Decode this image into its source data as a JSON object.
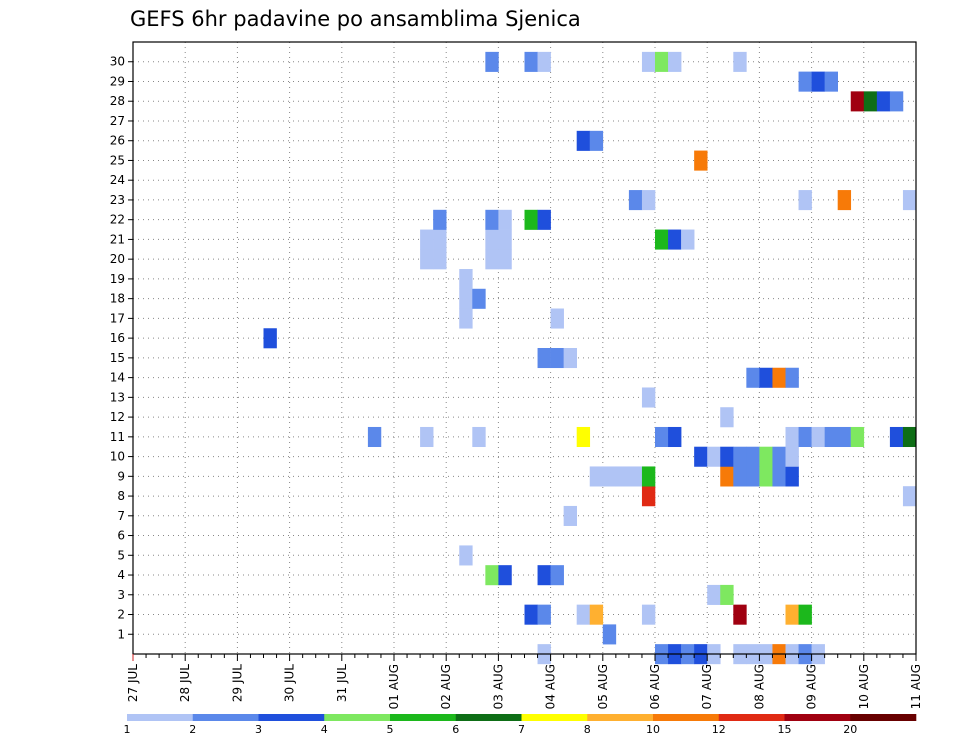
{
  "chart_data": {
    "type": "heatmap",
    "title": "GEFS 6hr padavine po ansamblima Sjenica",
    "xlabel": "",
    "ylabel": "",
    "y_ticks": [
      1,
      2,
      3,
      4,
      5,
      6,
      7,
      8,
      9,
      10,
      11,
      12,
      13,
      14,
      15,
      16,
      17,
      18,
      19,
      20,
      21,
      22,
      23,
      24,
      25,
      26,
      27,
      28,
      29,
      30
    ],
    "ylim": [
      0,
      30
    ],
    "x_ticks": [
      "27 JUL",
      "28 JUL",
      "29 JUL",
      "30 JUL",
      "31 JUL",
      "01 AUG",
      "02 AUG",
      "03 AUG",
      "04 AUG",
      "05 AUG",
      "06 AUG",
      "07 AUG",
      "08 AUG",
      "09 AUG",
      "10 AUG",
      "11 AUG"
    ],
    "steps_per_day": 4,
    "grid": true,
    "colorbar": {
      "colors": [
        "#b0c4f5",
        "#5b88ea",
        "#1f4fdc",
        "#7ee860",
        "#1cb81c",
        "#0e6e16",
        "#ffff00",
        "#ffb030",
        "#f77a08",
        "#e02a14",
        "#a00010",
        "#680000"
      ],
      "labels": [
        "1",
        "2",
        "3",
        "4",
        "5",
        "6",
        "7",
        "8",
        "10",
        "12",
        "15",
        "20"
      ],
      "placement": "bottom"
    },
    "cells": [
      {
        "t": 31,
        "m": 0,
        "v": 1
      },
      {
        "t": 40,
        "m": 0,
        "v": 2
      },
      {
        "t": 41,
        "m": 0,
        "v": 3
      },
      {
        "t": 42,
        "m": 0,
        "v": 2
      },
      {
        "t": 43,
        "m": 0,
        "v": 3
      },
      {
        "t": 44,
        "m": 0,
        "v": 1
      },
      {
        "t": 46,
        "m": 0,
        "v": 1
      },
      {
        "t": 47,
        "m": 0,
        "v": 1
      },
      {
        "t": 48,
        "m": 0,
        "v": 1
      },
      {
        "t": 49,
        "m": 0,
        "v": 9
      },
      {
        "t": 50,
        "m": 0,
        "v": 1
      },
      {
        "t": 51,
        "m": 0,
        "v": 2
      },
      {
        "t": 52,
        "m": 0,
        "v": 1
      },
      {
        "t": 36,
        "m": 1,
        "v": 2
      },
      {
        "t": 30,
        "m": 2,
        "v": 3
      },
      {
        "t": 31,
        "m": 2,
        "v": 2
      },
      {
        "t": 34,
        "m": 2,
        "v": 1
      },
      {
        "t": 35,
        "m": 2,
        "v": 8
      },
      {
        "t": 39,
        "m": 2,
        "v": 1
      },
      {
        "t": 46,
        "m": 2,
        "v": 11
      },
      {
        "t": 50,
        "m": 2,
        "v": 8
      },
      {
        "t": 51,
        "m": 2,
        "v": 5
      },
      {
        "t": 44,
        "m": 3,
        "v": 1
      },
      {
        "t": 45,
        "m": 3,
        "v": 4
      },
      {
        "t": 27,
        "m": 4,
        "v": 4
      },
      {
        "t": 28,
        "m": 4,
        "v": 3
      },
      {
        "t": 31,
        "m": 4,
        "v": 3
      },
      {
        "t": 32,
        "m": 4,
        "v": 2
      },
      {
        "t": 25,
        "m": 5,
        "v": 1
      },
      {
        "t": 33,
        "m": 7,
        "v": 1
      },
      {
        "t": 39,
        "m": 8,
        "v": 10
      },
      {
        "t": 59,
        "m": 8,
        "v": 1
      },
      {
        "t": 35,
        "m": 9,
        "v": 1
      },
      {
        "t": 36,
        "m": 9,
        "v": 1
      },
      {
        "t": 37,
        "m": 9,
        "v": 1
      },
      {
        "t": 38,
        "m": 9,
        "v": 1
      },
      {
        "t": 39,
        "m": 9,
        "v": 5
      },
      {
        "t": 45,
        "m": 9,
        "v": 9
      },
      {
        "t": 46,
        "m": 9,
        "v": 2
      },
      {
        "t": 47,
        "m": 9,
        "v": 2
      },
      {
        "t": 48,
        "m": 9,
        "v": 4
      },
      {
        "t": 49,
        "m": 9,
        "v": 2
      },
      {
        "t": 50,
        "m": 9,
        "v": 3
      },
      {
        "t": 43,
        "m": 10,
        "v": 3
      },
      {
        "t": 44,
        "m": 10,
        "v": 1
      },
      {
        "t": 45,
        "m": 10,
        "v": 3
      },
      {
        "t": 46,
        "m": 10,
        "v": 2
      },
      {
        "t": 47,
        "m": 10,
        "v": 2
      },
      {
        "t": 48,
        "m": 10,
        "v": 4
      },
      {
        "t": 49,
        "m": 10,
        "v": 2
      },
      {
        "t": 50,
        "m": 10,
        "v": 1
      },
      {
        "t": 18,
        "m": 11,
        "v": 2
      },
      {
        "t": 22,
        "m": 11,
        "v": 1
      },
      {
        "t": 26,
        "m": 11,
        "v": 1
      },
      {
        "t": 34,
        "m": 11,
        "v": 7
      },
      {
        "t": 40,
        "m": 11,
        "v": 2
      },
      {
        "t": 41,
        "m": 11,
        "v": 3
      },
      {
        "t": 50,
        "m": 11,
        "v": 1
      },
      {
        "t": 51,
        "m": 11,
        "v": 2
      },
      {
        "t": 52,
        "m": 11,
        "v": 1
      },
      {
        "t": 53,
        "m": 11,
        "v": 2
      },
      {
        "t": 54,
        "m": 11,
        "v": 2
      },
      {
        "t": 55,
        "m": 11,
        "v": 4
      },
      {
        "t": 58,
        "m": 11,
        "v": 3
      },
      {
        "t": 59,
        "m": 11,
        "v": 6
      },
      {
        "t": 45,
        "m": 12,
        "v": 1
      },
      {
        "t": 39,
        "m": 13,
        "v": 1
      },
      {
        "t": 47,
        "m": 14,
        "v": 2
      },
      {
        "t": 48,
        "m": 14,
        "v": 3
      },
      {
        "t": 49,
        "m": 14,
        "v": 9
      },
      {
        "t": 50,
        "m": 14,
        "v": 2
      },
      {
        "t": 31,
        "m": 15,
        "v": 2
      },
      {
        "t": 32,
        "m": 15,
        "v": 2
      },
      {
        "t": 33,
        "m": 15,
        "v": 1
      },
      {
        "t": 10,
        "m": 16,
        "v": 3
      },
      {
        "t": 25,
        "m": 17,
        "v": 1
      },
      {
        "t": 32,
        "m": 17,
        "v": 1
      },
      {
        "t": 25,
        "m": 18,
        "v": 1
      },
      {
        "t": 26,
        "m": 18,
        "v": 2
      },
      {
        "t": 25,
        "m": 19,
        "v": 1
      },
      {
        "t": 22,
        "m": 20,
        "v": 1
      },
      {
        "t": 23,
        "m": 20,
        "v": 1
      },
      {
        "t": 27,
        "m": 20,
        "v": 1
      },
      {
        "t": 28,
        "m": 20,
        "v": 1
      },
      {
        "t": 22,
        "m": 21,
        "v": 1
      },
      {
        "t": 23,
        "m": 21,
        "v": 1
      },
      {
        "t": 27,
        "m": 21,
        "v": 1
      },
      {
        "t": 28,
        "m": 21,
        "v": 1
      },
      {
        "t": 40,
        "m": 21,
        "v": 5
      },
      {
        "t": 41,
        "m": 21,
        "v": 3
      },
      {
        "t": 42,
        "m": 21,
        "v": 1
      },
      {
        "t": 23,
        "m": 22,
        "v": 2
      },
      {
        "t": 27,
        "m": 22,
        "v": 2
      },
      {
        "t": 28,
        "m": 22,
        "v": 1
      },
      {
        "t": 30,
        "m": 22,
        "v": 5
      },
      {
        "t": 31,
        "m": 22,
        "v": 3
      },
      {
        "t": 38,
        "m": 23,
        "v": 2
      },
      {
        "t": 39,
        "m": 23,
        "v": 1
      },
      {
        "t": 51,
        "m": 23,
        "v": 1
      },
      {
        "t": 54,
        "m": 23,
        "v": 9
      },
      {
        "t": 59,
        "m": 23,
        "v": 1
      },
      {
        "t": 43,
        "m": 25,
        "v": 9
      },
      {
        "t": 34,
        "m": 26,
        "v": 3
      },
      {
        "t": 35,
        "m": 26,
        "v": 2
      },
      {
        "t": 55,
        "m": 28,
        "v": 11
      },
      {
        "t": 56,
        "m": 28,
        "v": 6
      },
      {
        "t": 57,
        "m": 28,
        "v": 3
      },
      {
        "t": 58,
        "m": 28,
        "v": 2
      },
      {
        "t": 51,
        "m": 29,
        "v": 2
      },
      {
        "t": 52,
        "m": 29,
        "v": 3
      },
      {
        "t": 53,
        "m": 29,
        "v": 2
      },
      {
        "t": 27,
        "m": 30,
        "v": 2
      },
      {
        "t": 30,
        "m": 30,
        "v": 2
      },
      {
        "t": 31,
        "m": 30,
        "v": 1
      },
      {
        "t": 39,
        "m": 30,
        "v": 1
      },
      {
        "t": 40,
        "m": 30,
        "v": 4
      },
      {
        "t": 41,
        "m": 30,
        "v": 1
      },
      {
        "t": 46,
        "m": 30,
        "v": 1
      }
    ]
  }
}
